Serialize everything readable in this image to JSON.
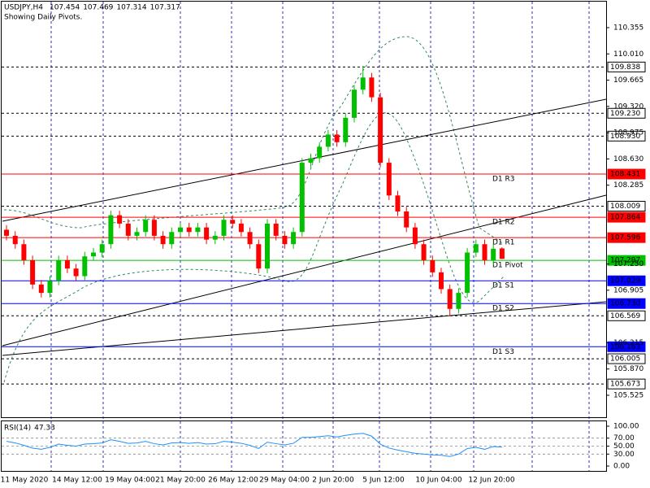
{
  "chart_data": {
    "type": "candlestick",
    "title": "USDJPY,H4",
    "quote": [
      107.454,
      107.469,
      107.314,
      107.317
    ],
    "subtitle": "Showing Daily Pivots.",
    "up_color": "#00c000",
    "down_color": "#ff0000",
    "open": [
      107.7,
      107.62,
      107.51,
      107.3,
      106.98,
      106.87,
      107.03,
      107.3,
      107.19,
      107.09,
      107.35,
      107.4,
      107.51,
      107.89,
      107.78,
      107.62,
      107.67,
      107.83,
      107.62,
      107.51,
      107.67,
      107.73,
      107.67,
      107.73,
      107.57,
      107.62,
      107.83,
      107.78,
      107.67,
      107.51,
      107.19,
      107.78,
      107.62,
      107.51,
      107.67,
      108.58,
      108.64,
      108.79,
      108.95,
      108.85,
      109.17,
      109.54,
      109.7,
      109.44,
      108.58,
      108.15,
      107.94,
      107.73,
      107.51,
      107.3,
      107.14,
      106.92,
      106.66,
      106.87,
      107.4,
      107.51,
      107.3,
      107.454
    ],
    "high": [
      107.76,
      107.68,
      107.57,
      107.36,
      107.04,
      107.09,
      107.36,
      107.36,
      107.25,
      107.41,
      107.46,
      107.57,
      107.95,
      107.95,
      107.84,
      107.73,
      107.89,
      107.89,
      107.68,
      107.73,
      107.79,
      107.79,
      107.79,
      107.79,
      107.68,
      107.89,
      107.89,
      107.84,
      107.73,
      107.57,
      107.84,
      107.84,
      107.68,
      107.73,
      108.64,
      108.7,
      108.85,
      109.01,
      109.01,
      109.23,
      109.6,
      109.85,
      109.76,
      109.5,
      108.64,
      108.21,
      108.0,
      107.79,
      107.57,
      107.36,
      107.2,
      106.98,
      106.93,
      107.46,
      107.57,
      107.57,
      107.51,
      107.469
    ],
    "low": [
      107.56,
      107.45,
      107.24,
      106.92,
      106.81,
      106.81,
      106.97,
      107.13,
      107.03,
      107.03,
      107.29,
      107.34,
      107.45,
      107.72,
      107.56,
      107.56,
      107.61,
      107.56,
      107.45,
      107.45,
      107.61,
      107.61,
      107.61,
      107.51,
      107.51,
      107.56,
      107.72,
      107.61,
      107.45,
      107.13,
      107.13,
      107.56,
      107.45,
      107.45,
      107.61,
      108.52,
      108.58,
      108.73,
      108.79,
      108.79,
      109.11,
      109.48,
      109.38,
      108.52,
      108.09,
      107.88,
      107.67,
      107.45,
      107.24,
      107.08,
      106.86,
      106.57,
      106.6,
      106.81,
      107.34,
      107.24,
      107.24,
      107.314
    ],
    "close": [
      107.62,
      107.51,
      107.3,
      106.98,
      106.87,
      107.03,
      107.3,
      107.19,
      107.09,
      107.35,
      107.4,
      107.51,
      107.89,
      107.78,
      107.62,
      107.67,
      107.83,
      107.62,
      107.51,
      107.67,
      107.73,
      107.67,
      107.73,
      107.57,
      107.62,
      107.83,
      107.78,
      107.67,
      107.51,
      107.19,
      107.78,
      107.62,
      107.51,
      107.67,
      108.58,
      108.64,
      108.79,
      108.95,
      108.85,
      109.17,
      109.54,
      109.7,
      109.44,
      108.58,
      108.15,
      107.94,
      107.73,
      107.51,
      107.3,
      107.14,
      106.92,
      106.66,
      106.87,
      107.4,
      107.51,
      107.3,
      107.45,
      107.317
    ],
    "ylim": [
      105.247,
      110.718
    ],
    "yticks": [
      110.355,
      {
        "value": 110.01,
        "label": "110.010"
      },
      109.665,
      {
        "value": 109.32,
        "label": "109.320"
      },
      108.975,
      {
        "value": 108.63,
        "label": "108.630"
      },
      108.285,
      {
        "value": 107.25,
        "label": "107.250"
      },
      106.905,
      106.215,
      {
        "value": 105.87,
        "label": "105.870"
      },
      105.525
    ],
    "levels": [
      {
        "value": 109.838,
        "label": "109.838",
        "color": "#000000",
        "dash": true
      },
      {
        "value": 109.23,
        "label": "109.230",
        "color": "#000000",
        "dash": true
      },
      {
        "value": 108.93,
        "label": "108.930",
        "color": "#000000",
        "dash": true
      },
      {
        "name": "D1 R3",
        "value": 108.431,
        "label": "108.431",
        "color": "#ff0000",
        "dash": false
      },
      {
        "value": 108.009,
        "label": "108.009",
        "color": "#000000",
        "dash": true
      },
      {
        "name": "D1 R2",
        "value": 107.864,
        "label": "107.864",
        "color": "#ff0000",
        "dash": false
      },
      {
        "name": "D1 R1",
        "value": 107.596,
        "label": "107.596",
        "color": "#ff0000",
        "dash": false
      },
      {
        "name": "D1 Pivot",
        "value": 107.297,
        "label": "107.297",
        "color": "#00c000",
        "dash": false
      },
      {
        "name": "D1 S1",
        "value": 107.029,
        "label": "107.029",
        "color": "#0000ff",
        "dash": false
      },
      {
        "name": "D1 S2",
        "value": 106.73,
        "label": "106.730",
        "color": "#0000ff",
        "dash": false
      },
      {
        "value": 106.569,
        "label": "106.569",
        "color": "#000000",
        "dash": true
      },
      {
        "name": "D1 S3",
        "value": 106.163,
        "label": "106.163",
        "color": "#0000ff",
        "dash": false
      },
      {
        "value": 106.005,
        "label": "106.005",
        "color": "#000000",
        "dash": true
      },
      {
        "value": 105.673,
        "label": "105.673",
        "color": "#000000",
        "dash": true
      }
    ],
    "rsi": {
      "title": "RSI(14)",
      "current": 47.33,
      "color": "#1e90ff",
      "values": [
        62,
        58,
        52,
        45,
        42,
        47,
        55,
        52,
        50,
        55,
        56,
        58,
        66,
        62,
        57,
        58,
        62,
        56,
        53,
        58,
        59,
        57,
        59,
        55,
        56,
        62,
        60,
        57,
        52,
        44,
        60,
        56,
        53,
        57,
        72,
        72,
        74,
        76,
        73,
        77,
        80,
        82,
        75,
        55,
        45,
        40,
        36,
        32,
        30,
        28,
        27,
        24,
        30,
        44,
        47,
        42,
        49,
        47.33
      ],
      "ylim": [
        -12.2,
        112.2
      ],
      "yticks": [
        {
          "value": 100,
          "label": "100.00"
        },
        {
          "value": 70,
          "label": "70.00"
        },
        {
          "value": 50,
          "label": "50.00"
        },
        {
          "value": 30,
          "label": "30.00"
        },
        {
          "value": 0,
          "label": "0.00"
        }
      ]
    },
    "x_labels": [
      "11 May 2020",
      "14 May 12:00",
      "19 May 04:00",
      "21 May 20:00",
      "26 May 12:00",
      "29 May 04:00",
      "2 Jun 20:00",
      "5 Jun 12:00",
      "10 Jun 04:00",
      "12 Jun 20:00"
    ]
  }
}
